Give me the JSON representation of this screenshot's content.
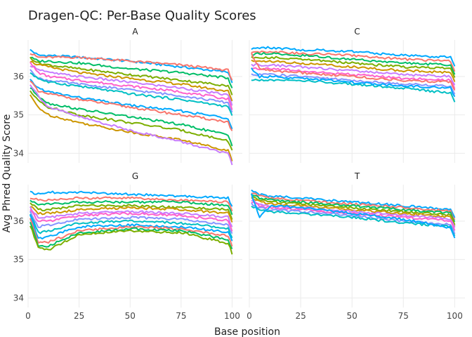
{
  "chart_data": {
    "type": "line",
    "title": "Dragen-QC: Per-Base Quality Scores",
    "xlabel": "Base position",
    "ylabel": "Avg Phred Quality Score",
    "xlim": [
      0,
      105
    ],
    "x_ticks": [
      0,
      25,
      50,
      75,
      100
    ],
    "ylim": [
      33.75,
      36.95
    ],
    "y_ticks": [
      34,
      35,
      36
    ],
    "grid": true,
    "legend": "none",
    "colors": [
      "#00a9ff",
      "#f8766d",
      "#00be67",
      "#7cae00",
      "#cd9600",
      "#c77cff",
      "#ff61cc",
      "#8494ff",
      "#00bfc4"
    ],
    "facets": [
      {
        "label": "A",
        "x": [
          1,
          5,
          10,
          25,
          50,
          75,
          100
        ],
        "series": [
          {
            "values": [
              36.7,
              36.55,
              36.55,
              36.5,
              36.4,
              36.25,
              36.1
            ]
          },
          {
            "values": [
              36.6,
              36.5,
              36.5,
              36.5,
              36.4,
              36.3,
              36.15
            ]
          },
          {
            "values": [
              36.5,
              36.4,
              36.4,
              36.35,
              36.2,
              36.1,
              35.95
            ]
          },
          {
            "values": [
              36.5,
              36.35,
              36.3,
              36.2,
              36.05,
              35.9,
              35.75
            ]
          },
          {
            "values": [
              36.4,
              36.3,
              36.25,
              36.1,
              35.95,
              35.8,
              35.6
            ]
          },
          {
            "values": [
              36.3,
              36.2,
              36.1,
              36.0,
              35.85,
              35.7,
              35.5
            ]
          },
          {
            "values": [
              36.35,
              36.1,
              36.0,
              35.9,
              35.75,
              35.6,
              35.4
            ]
          },
          {
            "values": [
              36.2,
              35.95,
              35.9,
              35.8,
              35.65,
              35.5,
              35.3
            ]
          },
          {
            "values": [
              36.1,
              35.95,
              35.85,
              35.75,
              35.55,
              35.4,
              35.2
            ]
          },
          {
            "values": [
              35.9,
              35.7,
              35.6,
              35.45,
              35.25,
              35.1,
              34.9
            ]
          },
          {
            "values": [
              35.9,
              35.6,
              35.55,
              35.4,
              35.2,
              35.0,
              34.8
            ]
          },
          {
            "values": [
              35.7,
              35.5,
              35.3,
              35.15,
              34.95,
              34.75,
              34.45
            ]
          },
          {
            "values": [
              35.6,
              35.4,
              35.2,
              35.0,
              34.8,
              34.6,
              34.3
            ]
          },
          {
            "values": [
              35.5,
              35.2,
              35.0,
              34.8,
              34.55,
              34.35,
              34.05
            ]
          },
          {
            "values": [
              35.8,
              35.5,
              35.2,
              34.95,
              34.6,
              34.3,
              33.95
            ]
          }
        ]
      },
      {
        "label": "C",
        "x": [
          1,
          5,
          10,
          25,
          50,
          75,
          100
        ],
        "series": [
          {
            "values": [
              36.7,
              36.75,
              36.75,
              36.7,
              36.65,
              36.55,
              36.5
            ]
          },
          {
            "values": [
              36.65,
              36.65,
              36.65,
              36.6,
              36.55,
              36.45,
              36.4
            ]
          },
          {
            "values": [
              36.55,
              36.6,
              36.6,
              36.55,
              36.45,
              36.35,
              36.3
            ]
          },
          {
            "values": [
              36.5,
              36.5,
              36.5,
              36.45,
              36.35,
              36.25,
              36.2
            ]
          },
          {
            "values": [
              36.4,
              36.4,
              36.4,
              36.35,
              36.25,
              36.15,
              36.1
            ]
          },
          {
            "values": [
              36.3,
              36.3,
              36.3,
              36.25,
              36.15,
              36.05,
              36.0
            ]
          },
          {
            "values": [
              36.2,
              36.2,
              36.2,
              36.15,
              36.05,
              35.95,
              35.9
            ]
          },
          {
            "values": [
              36.05,
              36.05,
              36.05,
              36.0,
              35.9,
              35.8,
              35.75
            ]
          },
          {
            "values": [
              35.9,
              35.9,
              35.9,
              35.9,
              35.8,
              35.7,
              35.55
            ]
          },
          {
            "values": [
              36.2,
              36.0,
              36.0,
              35.95,
              35.85,
              35.75,
              35.7
            ]
          },
          {
            "values": [
              36.6,
              36.2,
              36.15,
              36.1,
              36.0,
              35.9,
              35.85
            ]
          }
        ]
      },
      {
        "label": "G",
        "x": [
          1,
          5,
          10,
          25,
          50,
          75,
          100
        ],
        "series": [
          {
            "values": [
              36.75,
              36.7,
              36.75,
              36.75,
              36.7,
              36.65,
              36.6
            ]
          },
          {
            "values": [
              36.6,
              36.55,
              36.55,
              36.6,
              36.6,
              36.55,
              36.5
            ]
          },
          {
            "values": [
              36.55,
              36.45,
              36.45,
              36.5,
              36.5,
              36.5,
              36.4
            ]
          },
          {
            "values": [
              36.5,
              36.3,
              36.3,
              36.4,
              36.4,
              36.35,
              36.3
            ]
          },
          {
            "values": [
              36.4,
              36.2,
              36.2,
              36.3,
              36.35,
              36.3,
              36.2
            ]
          },
          {
            "values": [
              36.35,
              36.1,
              36.1,
              36.2,
              36.25,
              36.2,
              36.1
            ]
          },
          {
            "values": [
              36.3,
              36.0,
              36.0,
              36.15,
              36.2,
              36.15,
              36.0
            ]
          },
          {
            "values": [
              36.25,
              35.85,
              35.9,
              36.05,
              36.1,
              36.05,
              35.9
            ]
          },
          {
            "values": [
              36.2,
              35.7,
              35.75,
              35.95,
              36.0,
              35.95,
              35.8
            ]
          },
          {
            "values": [
              36.15,
              35.55,
              35.6,
              35.85,
              35.9,
              35.85,
              35.7
            ]
          },
          {
            "values": [
              36.1,
              35.45,
              35.45,
              35.75,
              35.85,
              35.8,
              35.6
            ]
          },
          {
            "values": [
              36.0,
              35.35,
              35.35,
              35.7,
              35.8,
              35.75,
              35.5
            ]
          },
          {
            "values": [
              35.9,
              35.3,
              35.25,
              35.65,
              35.75,
              35.7,
              35.4
            ]
          }
        ]
      },
      {
        "label": "T",
        "x": [
          1,
          5,
          10,
          25,
          50,
          75,
          100
        ],
        "series": [
          {
            "values": [
              36.8,
              36.7,
              36.65,
              36.6,
              36.5,
              36.4,
              36.3
            ]
          },
          {
            "values": [
              36.75,
              36.65,
              36.6,
              36.55,
              36.45,
              36.35,
              36.25
            ]
          },
          {
            "values": [
              36.7,
              36.6,
              36.55,
              36.5,
              36.4,
              36.3,
              36.2
            ]
          },
          {
            "values": [
              36.65,
              36.55,
              36.5,
              36.45,
              36.35,
              36.25,
              36.15
            ]
          },
          {
            "values": [
              36.6,
              36.5,
              36.45,
              36.4,
              36.3,
              36.2,
              36.1
            ]
          },
          {
            "values": [
              36.55,
              36.45,
              36.4,
              36.35,
              36.25,
              36.15,
              36.05
            ]
          },
          {
            "values": [
              36.5,
              36.4,
              36.35,
              36.3,
              36.2,
              36.1,
              36.0
            ]
          },
          {
            "values": [
              36.45,
              36.35,
              36.3,
              36.25,
              36.15,
              36.0,
              35.9
            ]
          },
          {
            "values": [
              36.4,
              36.3,
              36.25,
              36.2,
              36.1,
              35.95,
              35.85
            ]
          },
          {
            "values": [
              36.7,
              36.1,
              36.4,
              36.35,
              36.2,
              36.05,
              35.8
            ]
          }
        ]
      }
    ]
  }
}
